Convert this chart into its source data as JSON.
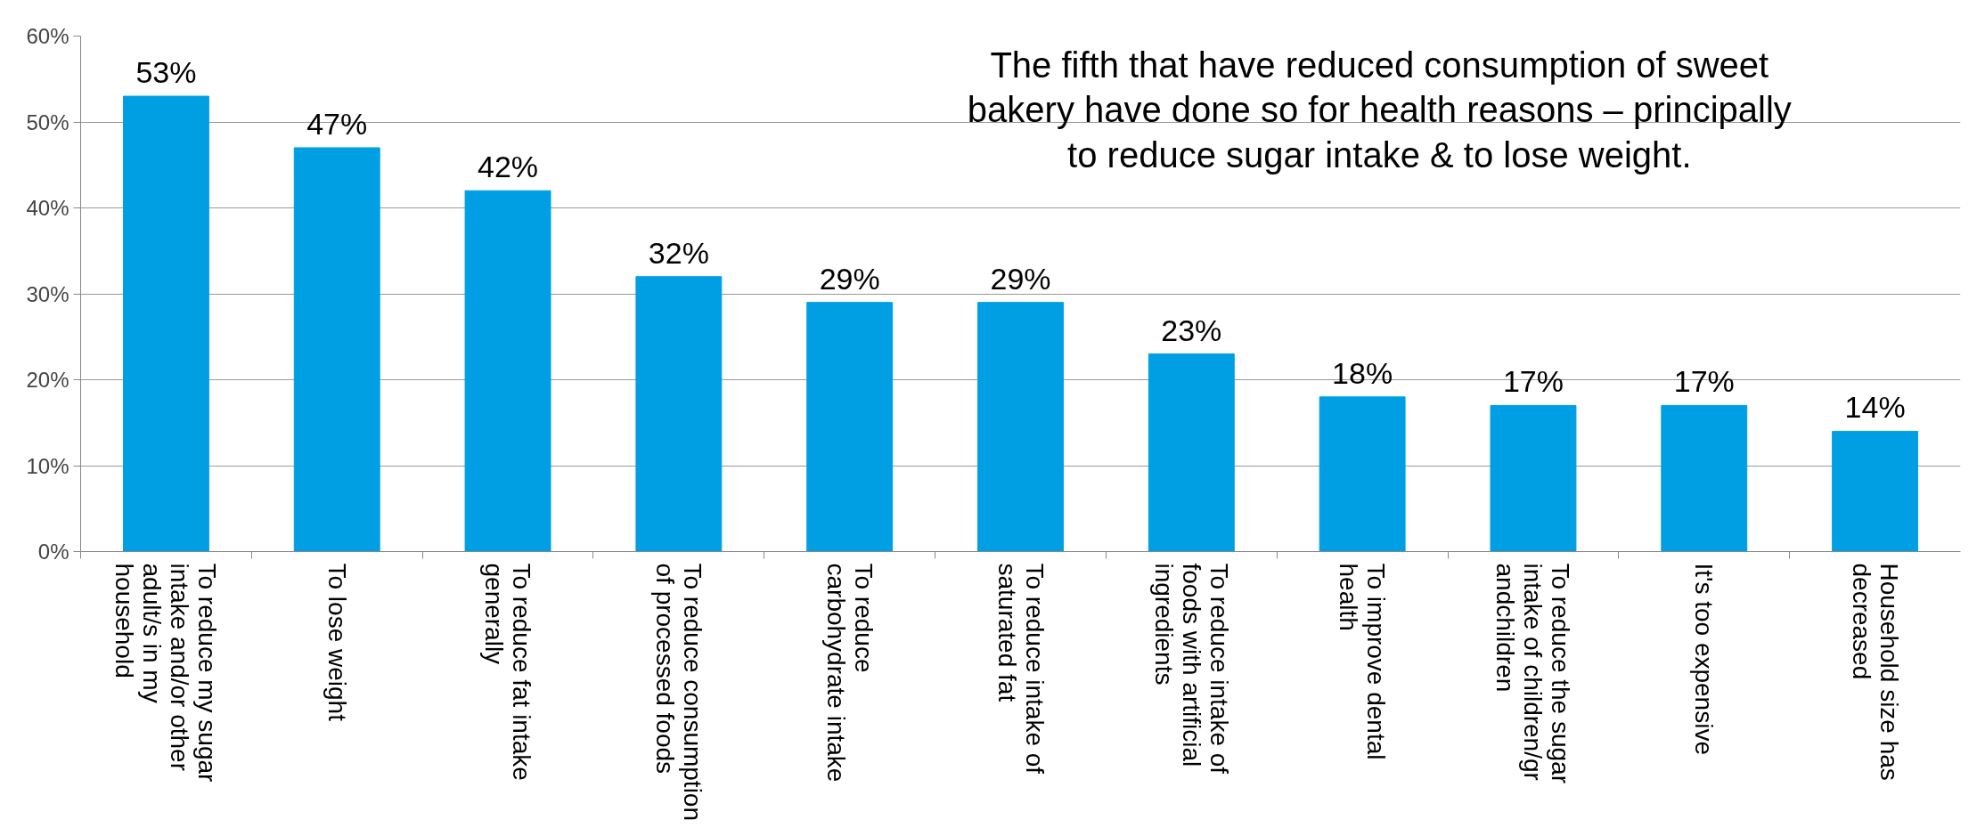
{
  "chart_data": {
    "type": "bar",
    "title": "The fifth that have reduced consumption of sweet bakery have done so for health reasons – principally to reduce sugar intake & to lose weight.",
    "categories": [
      "To reduce my sugar intake and/or other adult/s in my household",
      "To lose weight",
      "To reduce fat intake generally",
      "To reduce consumption of processed foods",
      "To reduce carbohydrate intake",
      "To reduce intake of saturated fat",
      "To reduce intake of foods with artificial ingredients",
      "To improve dental health",
      "To reduce the sugar intake of children/grandchildren",
      "It's too expensive",
      "Household size has decreased"
    ],
    "values": [
      53,
      47,
      42,
      32,
      29,
      29,
      23,
      18,
      17,
      17,
      14
    ],
    "value_labels": [
      "53%",
      "47%",
      "42%",
      "32%",
      "29%",
      "29%",
      "23%",
      "18%",
      "17%",
      "17%",
      "14%"
    ],
    "color": "#009fe3",
    "ylim": [
      0,
      60
    ],
    "yticks": [
      {
        "value": 0,
        "label": "0%"
      },
      {
        "value": 10,
        "label": "10%"
      },
      {
        "value": 20,
        "label": "20%"
      },
      {
        "value": 30,
        "label": "30%"
      },
      {
        "value": 40,
        "label": "40%"
      },
      {
        "value": 50,
        "label": "50%"
      },
      {
        "value": 60,
        "label": "60%"
      }
    ],
    "grid": "y"
  }
}
